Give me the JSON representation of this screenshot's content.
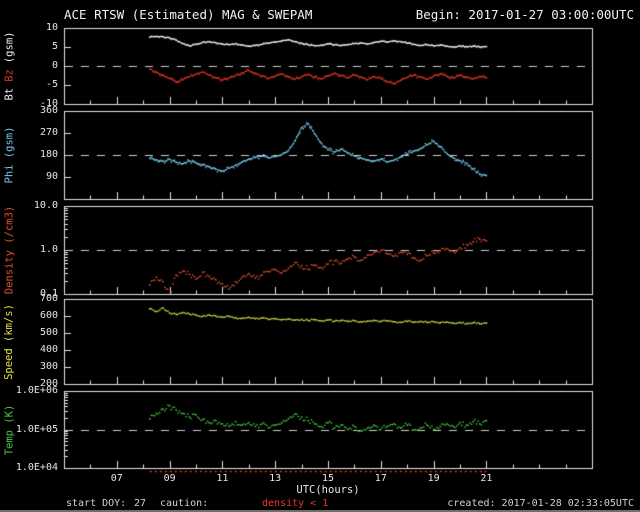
{
  "header": {
    "title": "ACE RTSW (Estimated) MAG & SWEPAM",
    "begin": "Begin: 2017-01-27 03:00:00UTC"
  },
  "footer": {
    "start_doy_label": "start DOY:",
    "start_doy_value": "27",
    "caution_label": "caution:",
    "caution_message": "density < 1",
    "caution_color": "#f23527",
    "created": "created: 2017-01-28 02:33:05UTC"
  },
  "colors": {
    "background": "#000000",
    "frame": "#e6e6e6",
    "reference_dash": "#cfcfcf",
    "bt": "#f0f0f0",
    "bz": "#d93425",
    "phi": "#74c8e6",
    "density": "#e0512e",
    "speed": "#e2e24e",
    "temp": "#46c846",
    "quality_marker": "#d9342e"
  },
  "chart_data": {
    "type": "line",
    "title": "ACE RTSW (Estimated) MAG & SWEPAM",
    "x_label": "UTC(hours)",
    "x_range": [
      5,
      25
    ],
    "x_ticks": [
      7,
      9,
      11,
      13,
      15,
      17,
      19,
      21
    ],
    "x_tick_labels": [
      "07",
      "09",
      "11",
      "13",
      "15",
      "17",
      "19",
      "21"
    ],
    "minor_tick_every_hours": 1,
    "grid": false,
    "t": [
      8.25,
      8.5,
      8.75,
      9.0,
      9.25,
      9.5,
      9.75,
      10.0,
      10.25,
      10.5,
      10.75,
      11.0,
      11.25,
      11.5,
      11.75,
      12.0,
      12.25,
      12.5,
      12.75,
      13.0,
      13.25,
      13.5,
      13.75,
      14.0,
      14.25,
      14.5,
      14.75,
      15.0,
      15.25,
      15.5,
      15.75,
      16.0,
      16.25,
      16.5,
      16.75,
      17.0,
      17.25,
      17.5,
      17.75,
      18.0,
      18.25,
      18.5,
      18.75,
      19.0,
      19.25,
      19.5,
      19.75,
      20.0,
      20.25,
      20.5,
      20.75,
      21.0
    ],
    "bottom_marker": {
      "color": "#d9342e",
      "t_start": 8.25,
      "t_end": 21.0
    },
    "panels": [
      {
        "name": "bt-bz",
        "ylabel_parts": [
          {
            "text": "Bt",
            "color": "#f0f0f0"
          },
          {
            "text": "Bz",
            "color": "#d93425"
          },
          {
            "text": "(gsm)",
            "color": "#f0f0f0"
          }
        ],
        "scale": "linear",
        "y_range": [
          -10,
          10
        ],
        "y_ticks": [
          10,
          5,
          0,
          -5,
          -10
        ],
        "y_tick_labels": [
          "10",
          "5",
          "0",
          "-5",
          "-10"
        ],
        "ref_line": 0,
        "series": [
          {
            "name": "Bt",
            "color": "#f0f0f0",
            "style": "line",
            "spread": 0.5,
            "values": [
              7.6,
              7.8,
              7.7,
              7.4,
              6.8,
              5.9,
              5.3,
              5.7,
              6.2,
              6.4,
              6.1,
              5.8,
              5.6,
              5.9,
              5.5,
              5.2,
              5.4,
              5.7,
              6.0,
              6.3,
              6.6,
              6.9,
              6.4,
              6.0,
              5.6,
              5.3,
              5.5,
              5.8,
              5.6,
              5.4,
              5.6,
              5.9,
              6.1,
              5.8,
              6.2,
              6.5,
              6.3,
              6.6,
              6.4,
              6.0,
              5.7,
              5.4,
              5.6,
              5.3,
              5.5,
              5.2,
              5.0,
              5.3,
              5.1,
              5.2,
              5.0,
              5.1
            ]
          },
          {
            "name": "Bz",
            "color": "#d93425",
            "style": "line",
            "spread": 0.9,
            "values": [
              -0.8,
              -1.6,
              -2.4,
              -3.3,
              -4.2,
              -3.6,
              -2.8,
              -2.2,
              -1.6,
              -2.4,
              -3.1,
              -3.7,
              -3.2,
              -2.5,
              -1.8,
              -1.2,
              -1.9,
              -2.6,
              -3.3,
              -2.7,
              -2.1,
              -2.9,
              -3.5,
              -2.8,
              -2.2,
              -2.9,
              -3.4,
              -2.6,
              -1.9,
              -2.5,
              -3.1,
              -2.4,
              -2.9,
              -3.6,
              -2.8,
              -3.3,
              -4.1,
              -4.6,
              -3.8,
              -3.0,
              -2.4,
              -2.9,
              -3.5,
              -2.7,
              -2.1,
              -2.7,
              -3.2,
              -2.5,
              -2.9,
              -3.4,
              -2.8,
              -3.1
            ]
          }
        ]
      },
      {
        "name": "phi",
        "ylabel_parts": [
          {
            "text": "Phi (gsm)",
            "color": "#74c8e6"
          }
        ],
        "scale": "linear",
        "y_range": [
          0,
          360
        ],
        "y_ticks": [
          360,
          270,
          180,
          90
        ],
        "y_tick_labels": [
          "360",
          "270",
          "180",
          "90"
        ],
        "ref_line": 180,
        "series": [
          {
            "name": "Phi",
            "color": "#74c8e6",
            "style": "line",
            "spread": 18,
            "values": [
              166,
              160,
              154,
              162,
              150,
              144,
              156,
              148,
              140,
              132,
              122,
              114,
              126,
              138,
              152,
              163,
              170,
              176,
              168,
              174,
              182,
              198,
              238,
              292,
              308,
              266,
              228,
              202,
              192,
              204,
              188,
              176,
              168,
              160,
              155,
              163,
              151,
              159,
              171,
              184,
              196,
              206,
              222,
              236,
              214,
              186,
              168,
              157,
              146,
              122,
              101,
              96
            ]
          }
        ]
      },
      {
        "name": "density",
        "ylabel_parts": [
          {
            "text": "Density (/cm3)",
            "color": "#e0512e"
          }
        ],
        "scale": "log",
        "y_range": [
          0.1,
          10.0
        ],
        "y_ticks": [
          10.0,
          1.0,
          0.1
        ],
        "y_tick_labels": [
          "10.0",
          "1.0",
          "0.1"
        ],
        "ref_line": 1.0,
        "series": [
          {
            "name": "Density",
            "color": "#e0512e",
            "style": "scatter",
            "spread": 0.12,
            "values": [
              0.16,
              0.24,
              0.19,
              0.1,
              0.27,
              0.33,
              0.28,
              0.22,
              0.31,
              0.25,
              0.21,
              0.17,
              0.13,
              0.19,
              0.24,
              0.29,
              0.23,
              0.27,
              0.32,
              0.36,
              0.3,
              0.38,
              0.52,
              0.44,
              0.37,
              0.45,
              0.4,
              0.48,
              0.56,
              0.5,
              0.62,
              0.7,
              0.58,
              0.76,
              0.88,
              0.97,
              0.82,
              0.72,
              0.9,
              0.8,
              0.66,
              0.58,
              0.74,
              0.86,
              0.96,
              1.08,
              0.92,
              1.12,
              1.32,
              1.54,
              1.76,
              1.62
            ]
          }
        ]
      },
      {
        "name": "speed",
        "ylabel_parts": [
          {
            "text": "Speed (km/s)",
            "color": "#e2e24e"
          }
        ],
        "scale": "linear",
        "y_range": [
          200,
          700
        ],
        "y_ticks": [
          700,
          600,
          500,
          400,
          300,
          200
        ],
        "y_tick_labels": [
          "700",
          "600",
          "500",
          "400",
          "300",
          "200"
        ],
        "ref_line": null,
        "series": [
          {
            "name": "Speed",
            "color": "#e2e24e",
            "style": "scatter",
            "spread": 10,
            "values": [
              642,
              626,
              648,
              618,
              610,
              620,
              612,
              605,
              598,
              606,
              600,
              594,
              598,
              590,
              586,
              592,
              584,
              588,
              580,
              584,
              578,
              582,
              576,
              580,
              574,
              578,
              572,
              576,
              570,
              574,
              568,
              572,
              566,
              570,
              574,
              568,
              572,
              566,
              562,
              568,
              564,
              568,
              562,
              566,
              560,
              564,
              558,
              562,
              556,
              560,
              555,
              558
            ]
          }
        ]
      },
      {
        "name": "temp",
        "ylabel_parts": [
          {
            "text": "Temp (K)",
            "color": "#46c846"
          }
        ],
        "scale": "log",
        "y_range": [
          10000.0,
          1000000.0
        ],
        "y_ticks": [
          1000000.0,
          100000.0,
          10000.0
        ],
        "y_tick_labels": [
          "1.0E+06",
          "1.0E+05",
          "1.0E+04"
        ],
        "ref_line": 100000.0,
        "series": [
          {
            "name": "Temp",
            "color": "#46c846",
            "style": "scatter",
            "spread": 0.14,
            "values": [
              190000.0,
              260000.0,
              340000.0,
              410000.0,
              320000.0,
              260000.0,
              210000.0,
              240000.0,
              180000.0,
              150000.0,
              170000.0,
              140000.0,
              120000.0,
              160000.0,
              130000.0,
              150000.0,
              120000.0,
              140000.0,
              110000.0,
              130000.0,
              150000.0,
              190000.0,
              250000.0,
              210000.0,
              170000.0,
              140000.0,
              120000.0,
              150000.0,
              110000.0,
              130000.0,
              100000.0,
              120000.0,
              92000.0,
              110000.0,
              130000.0,
              100000.0,
              120000.0,
              140000.0,
              110000.0,
              130000.0,
              96000.0,
              110000.0,
              130000.0,
              100000.0,
              120000.0,
              140000.0,
              120000.0,
              150000.0,
              130000.0,
              160000.0,
              140000.0,
              170000.0
            ]
          }
        ]
      }
    ]
  }
}
